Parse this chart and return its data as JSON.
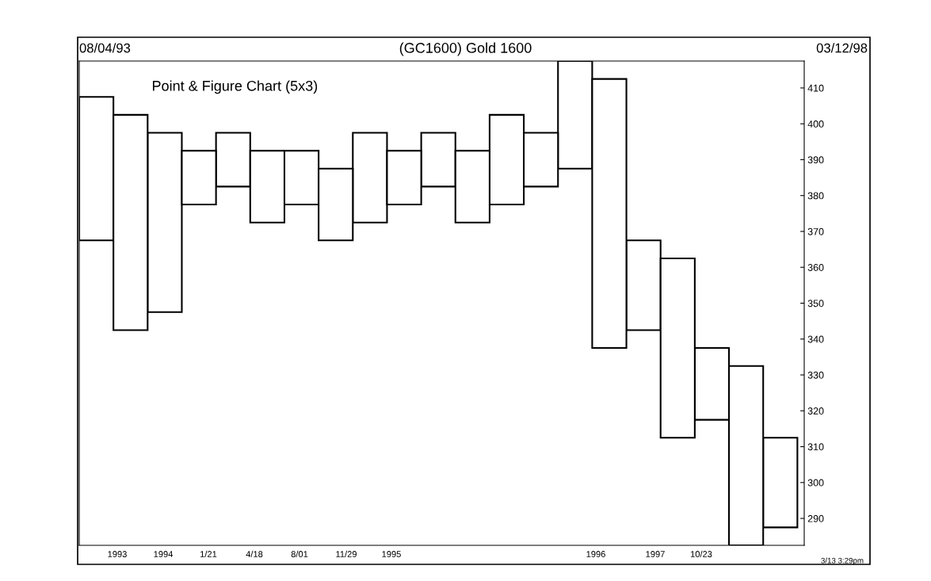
{
  "chart_data": {
    "type": "bar",
    "title": "(GC1600) Gold 1600",
    "subtitle": "Point & Figure Chart (5x3)",
    "annotations": [
      "08/04/93",
      "03/12/98",
      "3/13 3:29pm",
      "1993",
      "1994",
      "1/21",
      "4/18",
      "8/01",
      "11/29",
      "1995",
      "1996",
      "1997",
      "10/23"
    ],
    "categories": [
      null,
      null,
      null,
      null,
      null,
      null,
      null,
      null,
      null,
      null,
      null,
      null,
      null,
      null,
      null,
      null,
      null,
      null,
      null,
      null,
      null
    ],
    "series": [
      {
        "color": "#000000",
        "base": [
          367.5,
          null,
          347.5,
          null,
          382.5,
          null,
          377.5,
          null,
          372.5,
          null,
          382.5,
          null,
          377.5,
          null,
          387.5,
          null,
          342.5,
          null,
          317.5,
          null,
          287.5
        ],
        "values": [
          40,
          null,
          50,
          null,
          15,
          null,
          15,
          null,
          25,
          null,
          15,
          null,
          25,
          null,
          30,
          null,
          25,
          null,
          20,
          null,
          25
        ]
      },
      {
        "color": "#000000",
        "base": [
          null,
          342.5,
          null,
          377.5,
          null,
          372.5,
          null,
          367.5,
          null,
          377.5,
          null,
          372.5,
          null,
          382.5,
          null,
          337.5,
          null,
          312.5,
          null,
          282.5,
          null
        ],
        "values": [
          null,
          60,
          null,
          15,
          null,
          20,
          null,
          20,
          null,
          15,
          null,
          20,
          null,
          15,
          null,
          75,
          null,
          50,
          null,
          50,
          null
        ]
      }
    ],
    "ylim": [
      282.5,
      417.5
    ],
    "yticks": [
      290,
      300,
      310,
      320,
      330,
      340,
      350,
      360,
      370,
      380,
      390,
      400,
      410
    ],
    "grid": false,
    "legend": false
  }
}
